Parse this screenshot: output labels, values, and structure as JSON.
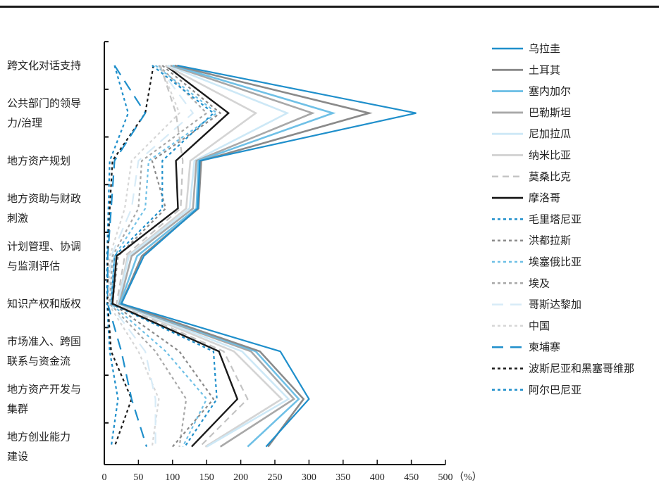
{
  "chart_data": {
    "type": "line",
    "orientation": "horizontal-profile",
    "categories": [
      [
        "跨文化对话支持"
      ],
      [
        "公共部门的领导",
        "力/治理"
      ],
      [
        "地方资产规划"
      ],
      [
        "地方资助与财政",
        "刺激"
      ],
      [
        "计划管理、协调",
        "与监测评估"
      ],
      [
        "知识产权和版权"
      ],
      [
        "市场准入、跨国",
        "联系与资金流"
      ],
      [
        "地方资产开发与",
        "集群"
      ],
      [
        "地方创业能力",
        "建设"
      ]
    ],
    "xlim": [
      0,
      500
    ],
    "xticks": [
      0,
      50,
      100,
      150,
      200,
      250,
      300,
      350,
      400,
      450,
      500
    ],
    "xunit": "（%）",
    "legend_position": "right",
    "series": [
      {
        "name": "乌拉圭",
        "color": "#1f8fcb",
        "dash": "solid",
        "width": 2.2,
        "values": [
          107,
          457,
          140,
          137,
          58,
          25,
          258,
          300,
          237
        ]
      },
      {
        "name": "土耳其",
        "color": "#8a8a8a",
        "dash": "solid",
        "width": 2.6,
        "values": [
          103,
          388,
          142,
          138,
          55,
          25,
          228,
          292,
          240
        ]
      },
      {
        "name": "塞内加尔",
        "color": "#6fc0e6",
        "dash": "solid",
        "width": 2.6,
        "values": [
          100,
          335,
          138,
          135,
          48,
          23,
          222,
          285,
          210
        ]
      },
      {
        "name": "巴勒斯坦",
        "color": "#a8a8a8",
        "dash": "solid",
        "width": 2.6,
        "values": [
          97,
          305,
          135,
          130,
          40,
          22,
          215,
          278,
          170
        ]
      },
      {
        "name": "尼加拉瓜",
        "color": "#cde8f6",
        "dash": "solid",
        "width": 2.6,
        "values": [
          93,
          268,
          132,
          125,
          36,
          20,
          202,
          270,
          150
        ]
      },
      {
        "name": "纳米比亚",
        "color": "#d4d4d4",
        "dash": "solid",
        "width": 2.6,
        "values": [
          90,
          222,
          126,
          120,
          34,
          20,
          190,
          260,
          148
        ]
      },
      {
        "name": "莫桑比克",
        "color": "#c4c4c4",
        "dash": "dashed",
        "width": 2.2,
        "values": [
          82,
          105,
          115,
          112,
          30,
          18,
          175,
          210,
          140
        ]
      },
      {
        "name": "摩洛哥",
        "color": "#1a1a1a",
        "dash": "solid",
        "width": 2.4,
        "values": [
          90,
          182,
          105,
          108,
          18,
          12,
          168,
          195,
          128
        ]
      },
      {
        "name": "毛里塔尼亚",
        "color": "#1f8fcb",
        "dash": "dotted",
        "width": 2.2,
        "values": [
          70,
          160,
          85,
          85,
          15,
          10,
          160,
          165,
          118
        ]
      },
      {
        "name": "洪都拉斯",
        "color": "#8a8a8a",
        "dash": "dotted",
        "width": 2.2,
        "values": [
          85,
          170,
          70,
          90,
          20,
          12,
          110,
          160,
          100
        ]
      },
      {
        "name": "埃塞俄比亚",
        "color": "#6fc0e6",
        "dash": "dotted",
        "width": 2.2,
        "values": [
          75,
          165,
          65,
          60,
          15,
          10,
          90,
          150,
          115
        ]
      },
      {
        "name": "埃及",
        "color": "#a8a8a8",
        "dash": "dotted",
        "width": 2.2,
        "values": [
          80,
          150,
          55,
          50,
          12,
          8,
          75,
          120,
          110
        ]
      },
      {
        "name": "哥斯达黎加",
        "color": "#d7ebf7",
        "dash": "longdash",
        "width": 2.2,
        "values": [
          78,
          130,
          50,
          40,
          10,
          8,
          60,
          75,
          75
        ]
      },
      {
        "name": "中国",
        "color": "#d7d7d7",
        "dash": "dotted",
        "width": 2.2,
        "values": [
          82,
          110,
          40,
          30,
          8,
          6,
          50,
          80,
          70
        ]
      },
      {
        "name": "柬埔寨",
        "color": "#1f8fcb",
        "dash": "longdash",
        "width": 2.2,
        "values": [
          15,
          60,
          15,
          10,
          5,
          5,
          25,
          40,
          62
        ]
      },
      {
        "name": "波斯尼亚和黑塞哥维那",
        "color": "#1a1a1a",
        "dash": "dotted",
        "width": 2.2,
        "values": [
          72,
          60,
          12,
          8,
          5,
          5,
          10,
          40,
          15
        ]
      },
      {
        "name": "阿尔巴尼亚",
        "color": "#1f8fcb",
        "dash": "dotted",
        "width": 2.2,
        "values": [
          15,
          35,
          8,
          6,
          4,
          4,
          8,
          20,
          10
        ]
      }
    ]
  }
}
